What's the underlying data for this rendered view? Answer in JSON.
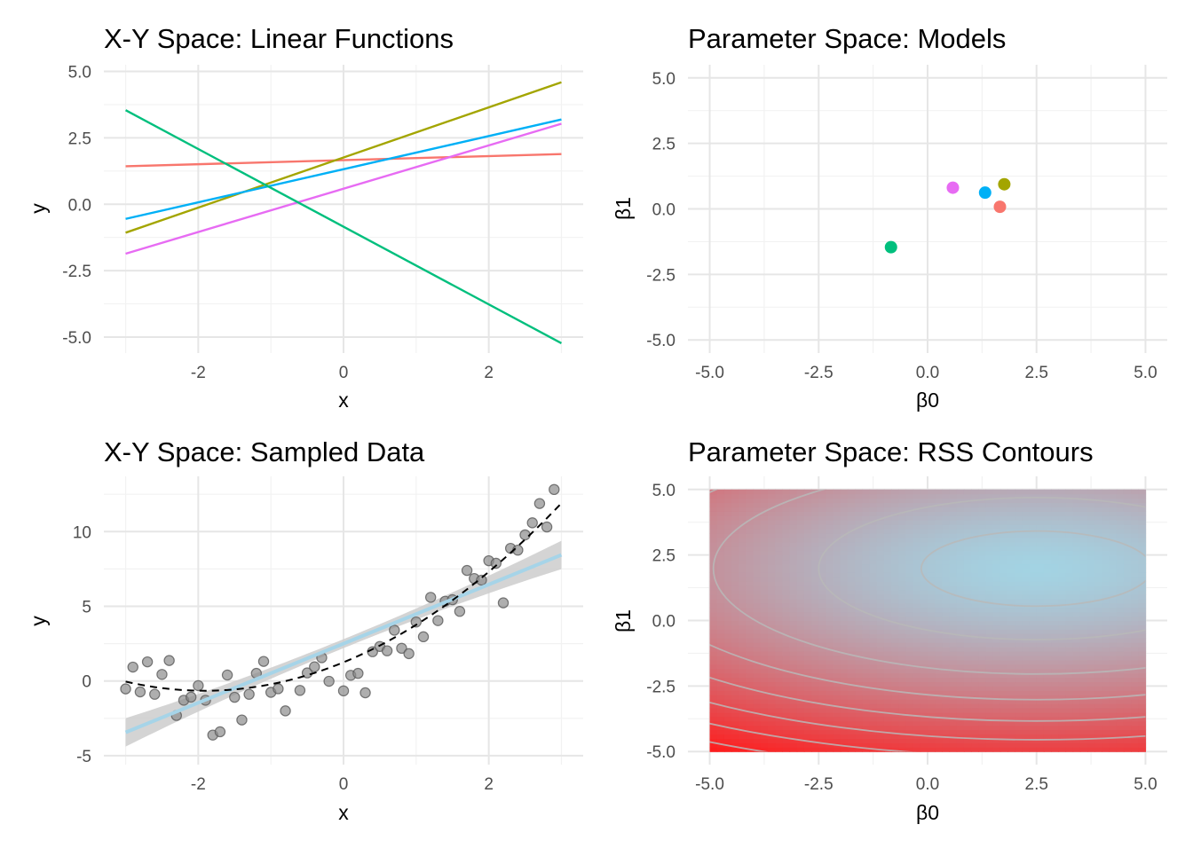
{
  "colors": {
    "grid_major": "#e6e6e6",
    "grid_minor": "#f2f2f2",
    "tick_text": "#4d4d4d",
    "model_red": "#f8766d",
    "model_olive": "#a3a500",
    "model_green": "#00bf7d",
    "model_blue": "#00b0f6",
    "model_magenta": "#e76bf3",
    "smooth_line": "#a6d4e8",
    "ribbon": "#cccccc",
    "rss_low": "#a3d3e3",
    "rss_high": "#ff1a1a"
  },
  "chart_data": [
    {
      "id": "p1",
      "type": "line",
      "title": "X-Y Space: Linear Functions",
      "xlabel": "x",
      "ylabel": "y",
      "xlim": [
        -3.3,
        3.3
      ],
      "ylim": [
        -5.6,
        5.25
      ],
      "xticks": [
        -2,
        0,
        2
      ],
      "yticks": [
        -5.0,
        -2.5,
        0.0,
        2.5,
        5.0
      ],
      "ytick_labels": [
        "-5.0",
        "-2.5",
        "0.0",
        "2.5",
        "5.0"
      ],
      "xtick_labels": [
        "-2",
        "0",
        "2"
      ],
      "series": [
        {
          "color": "#f8766d",
          "x": [
            -3,
            3
          ],
          "y": [
            1.43,
            1.89
          ]
        },
        {
          "color": "#a3a500",
          "x": [
            -3,
            3
          ],
          "y": [
            -1.07,
            4.59
          ]
        },
        {
          "color": "#00b0f6",
          "x": [
            -3,
            3
          ],
          "y": [
            -0.55,
            3.19
          ]
        },
        {
          "color": "#e76bf3",
          "x": [
            -3,
            3
          ],
          "y": [
            -1.86,
            3.03
          ]
        },
        {
          "color": "#00bf7d",
          "x": [
            -3,
            3
          ],
          "y": [
            3.54,
            -5.23
          ]
        }
      ]
    },
    {
      "id": "p2",
      "type": "scatter",
      "title": "Parameter Space: Models",
      "xlabel": "β0",
      "ylabel": "β1",
      "xlim": [
        -5.5,
        5.5
      ],
      "ylim": [
        -5.5,
        5.5
      ],
      "xticks": [
        -5.0,
        -2.5,
        0.0,
        2.5,
        5.0
      ],
      "yticks": [
        -5.0,
        -2.5,
        0.0,
        2.5,
        5.0
      ],
      "xtick_labels": [
        "-5.0",
        "-2.5",
        "0.0",
        "2.5",
        "5.0"
      ],
      "ytick_labels": [
        "-5.0",
        "-2.5",
        "0.0",
        "2.5",
        "5.0"
      ],
      "points": [
        {
          "x": 1.66,
          "y": 0.08,
          "color": "#f8766d"
        },
        {
          "x": 1.76,
          "y": 0.94,
          "color": "#a3a500"
        },
        {
          "x": 1.32,
          "y": 0.62,
          "color": "#00b0f6"
        },
        {
          "x": 0.58,
          "y": 0.81,
          "color": "#e76bf3"
        },
        {
          "x": -0.84,
          "y": -1.46,
          "color": "#00bf7d"
        }
      ]
    },
    {
      "id": "p3",
      "type": "scatter",
      "title": "X-Y Space: Sampled Data",
      "xlabel": "x",
      "ylabel": "y",
      "xlim": [
        -3.3,
        3.3
      ],
      "ylim": [
        -5.6,
        13.7
      ],
      "xticks": [
        -2,
        0,
        2
      ],
      "yticks": [
        -5,
        0,
        5,
        10
      ],
      "xtick_labels": [
        "-2",
        "0",
        "2"
      ],
      "ytick_labels": [
        "-5",
        "0",
        "5",
        "10"
      ],
      "linear_fit": {
        "intercept": 2.5,
        "slope": 1.98,
        "se_at_edge": 0.95,
        "se_at_center": 0.3
      },
      "quadratic_curve": {
        "a": 0.52,
        "b": 1.99,
        "c": 1.25
      },
      "points": [
        {
          "x": -3.0,
          "y": -0.53
        },
        {
          "x": -2.9,
          "y": 0.93
        },
        {
          "x": -2.8,
          "y": -0.73
        },
        {
          "x": -2.7,
          "y": 1.28
        },
        {
          "x": -2.6,
          "y": -0.89
        },
        {
          "x": -2.5,
          "y": 0.44
        },
        {
          "x": -2.4,
          "y": 1.37
        },
        {
          "x": -2.3,
          "y": -2.31
        },
        {
          "x": -2.2,
          "y": -1.29
        },
        {
          "x": -2.1,
          "y": -1.08
        },
        {
          "x": -2.0,
          "y": -0.31
        },
        {
          "x": -1.9,
          "y": -1.29
        },
        {
          "x": -1.8,
          "y": -3.62
        },
        {
          "x": -1.7,
          "y": -3.4
        },
        {
          "x": -1.6,
          "y": 0.4
        },
        {
          "x": -1.5,
          "y": -1.09
        },
        {
          "x": -1.4,
          "y": -2.61
        },
        {
          "x": -1.3,
          "y": -0.89
        },
        {
          "x": -1.2,
          "y": 0.51
        },
        {
          "x": -1.1,
          "y": 1.31
        },
        {
          "x": -1.0,
          "y": -0.76
        },
        {
          "x": -0.9,
          "y": -0.52
        },
        {
          "x": -0.8,
          "y": -2.0
        },
        {
          "x": -0.6,
          "y": -0.63
        },
        {
          "x": -0.5,
          "y": 0.54
        },
        {
          "x": -0.4,
          "y": 0.95
        },
        {
          "x": -0.3,
          "y": 1.56
        },
        {
          "x": -0.2,
          "y": -0.02
        },
        {
          "x": 0.0,
          "y": -0.66
        },
        {
          "x": 0.1,
          "y": 0.38
        },
        {
          "x": 0.2,
          "y": 0.51
        },
        {
          "x": 0.3,
          "y": -0.79
        },
        {
          "x": 0.4,
          "y": 1.96
        },
        {
          "x": 0.5,
          "y": 2.31
        },
        {
          "x": 0.6,
          "y": 2.02
        },
        {
          "x": 0.7,
          "y": 3.4
        },
        {
          "x": 0.8,
          "y": 2.19
        },
        {
          "x": 0.9,
          "y": 1.83
        },
        {
          "x": 1.0,
          "y": 3.95
        },
        {
          "x": 1.1,
          "y": 2.96
        },
        {
          "x": 1.2,
          "y": 5.6
        },
        {
          "x": 1.3,
          "y": 4.04
        },
        {
          "x": 1.4,
          "y": 5.34
        },
        {
          "x": 1.5,
          "y": 5.44
        },
        {
          "x": 1.6,
          "y": 4.66
        },
        {
          "x": 1.7,
          "y": 7.4
        },
        {
          "x": 1.8,
          "y": 6.86
        },
        {
          "x": 1.9,
          "y": 6.75
        },
        {
          "x": 2.0,
          "y": 8.05
        },
        {
          "x": 2.1,
          "y": 7.88
        },
        {
          "x": 2.2,
          "y": 5.23
        },
        {
          "x": 2.3,
          "y": 8.88
        },
        {
          "x": 2.4,
          "y": 8.76
        },
        {
          "x": 2.5,
          "y": 9.78
        },
        {
          "x": 2.6,
          "y": 10.59
        },
        {
          "x": 2.7,
          "y": 11.88
        },
        {
          "x": 2.8,
          "y": 10.31
        },
        {
          "x": 2.9,
          "y": 12.82
        }
      ]
    },
    {
      "id": "p4",
      "type": "heatmap",
      "title": "Parameter Space: RSS Contours",
      "xlabel": "β0",
      "ylabel": "β1",
      "xlim": [
        -5.5,
        5.5
      ],
      "ylim": [
        -5.5,
        5.5
      ],
      "xticks": [
        -5.0,
        -2.5,
        0.0,
        2.5,
        5.0
      ],
      "yticks": [
        -5.0,
        -2.5,
        0.0,
        2.5,
        5.0
      ],
      "xtick_labels": [
        "-5.0",
        "-2.5",
        "0.0",
        "2.5",
        "5.0"
      ],
      "ytick_labels": [
        "-5.0",
        "-2.5",
        "0.0",
        "2.5",
        "5.0"
      ],
      "grid_range": {
        "x": [
          -5,
          5
        ],
        "y": [
          -5,
          5
        ]
      },
      "rss_minimum": {
        "b0": 2.5,
        "b1": 1.98
      },
      "rss_x_weight": 1.0,
      "rss_y_weight": 3.4,
      "contour_levels": [
        7,
        25,
        55,
        85,
        115,
        145,
        175,
        205,
        235,
        265,
        295,
        325,
        355
      ]
    }
  ]
}
